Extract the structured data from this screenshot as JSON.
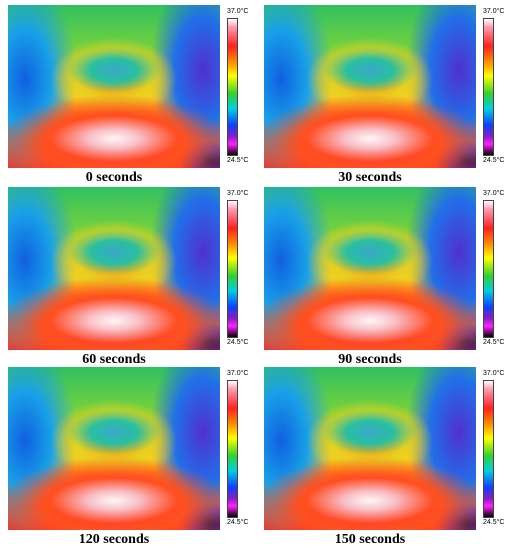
{
  "panels": [
    {
      "caption": "0 seconds",
      "max_label": "37.0°C",
      "min_label": "24.5°C"
    },
    {
      "caption": "30 seconds",
      "max_label": "37.0°C",
      "min_label": "24.5°C"
    },
    {
      "caption": "60 seconds",
      "max_label": "37.0°C",
      "min_label": "24.5°C"
    },
    {
      "caption": "90 seconds",
      "max_label": "37.0°C",
      "min_label": "24.5°C"
    },
    {
      "caption": "120 seconds",
      "max_label": "37.0°C",
      "min_label": "24.5°C"
    },
    {
      "caption": "150 seconds",
      "max_label": "37.0°C",
      "min_label": "24.5°C"
    }
  ]
}
